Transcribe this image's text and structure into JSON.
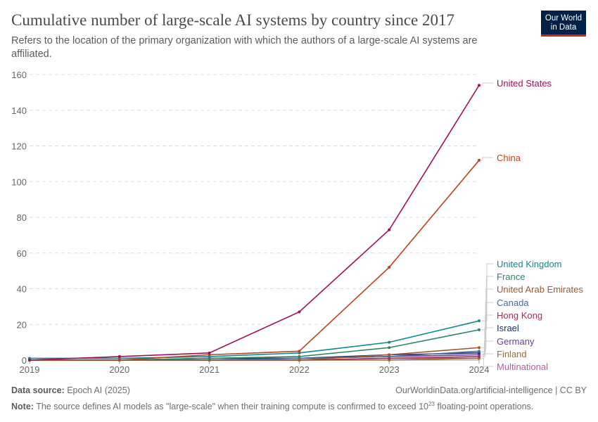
{
  "header": {
    "title": "Cumulative number of large-scale AI systems by country since 2017",
    "subtitle": "Refers to the location of the primary organization with which the authors of a large-scale AI systems are affiliated.",
    "logo": "Our World in Data"
  },
  "footer": {
    "source_label": "Data source:",
    "source": "Epoch AI (2025)",
    "url": "OurWorldinData.org/artificial-intelligence | CC BY",
    "note_label": "Note:",
    "note": "The source defines AI models as \"large-scale\" when their training compute is confirmed to exceed 10",
    "note_sup": "23",
    "note_end": " floating-point operations."
  },
  "chart_data": {
    "type": "line",
    "title": "Cumulative number of large-scale AI systems by country since 2017",
    "x": [
      2019,
      2020,
      2021,
      2022,
      2023,
      2024
    ],
    "xlim": [
      2019,
      2024
    ],
    "ylim": [
      0,
      160
    ],
    "yticks": [
      0,
      20,
      40,
      60,
      80,
      100,
      120,
      140,
      160
    ],
    "grid": "horizontal dashed",
    "legend": "right, end-of-line labels",
    "series": [
      {
        "name": "United States",
        "color": "#a0105a",
        "values": [
          0,
          2,
          4,
          27,
          73,
          154
        ]
      },
      {
        "name": "China",
        "color": "#c0421a",
        "values": [
          0,
          0,
          3,
          5,
          52,
          112
        ]
      },
      {
        "name": "United Kingdom",
        "color": "#0b8a94",
        "values": [
          1,
          1,
          2,
          4,
          10,
          22
        ]
      },
      {
        "name": "France",
        "color": "#2c8465",
        "values": [
          0,
          0,
          1,
          2,
          7,
          17
        ]
      },
      {
        "name": "United Arab Emirates",
        "color": "#a2582f",
        "values": [
          0,
          0,
          0,
          0,
          3,
          7
        ]
      },
      {
        "name": "Canada",
        "color": "#4c6a9c",
        "values": [
          0,
          0,
          0,
          1,
          2,
          5
        ]
      },
      {
        "name": "Hong Kong",
        "color": "#a3324d",
        "values": [
          0,
          0,
          0,
          0,
          1,
          2
        ]
      },
      {
        "name": "Israel",
        "color": "#18366b",
        "values": [
          0,
          0,
          1,
          1,
          3,
          4
        ]
      },
      {
        "name": "Germany",
        "color": "#6b3d99",
        "values": [
          0,
          0,
          0,
          1,
          2,
          3
        ]
      },
      {
        "name": "Finland",
        "color": "#9b6d33",
        "values": [
          0,
          0,
          0,
          0,
          0,
          1
        ]
      },
      {
        "name": "Multinational",
        "color": "#b55aab",
        "values": [
          0,
          0,
          0,
          0,
          1,
          1
        ]
      }
    ]
  }
}
